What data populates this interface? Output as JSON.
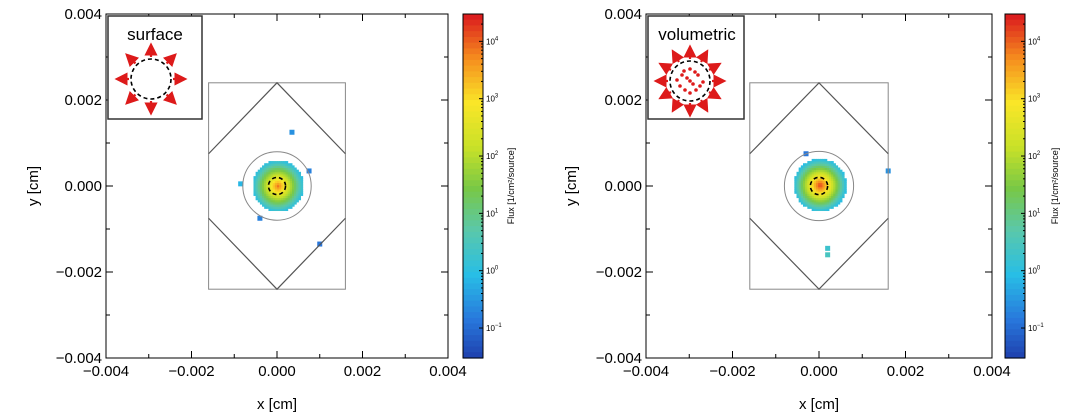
{
  "chart_data": [
    {
      "type": "heatmap",
      "panel": "surface",
      "inset_label": "surface",
      "xlabel": "x [cm]",
      "ylabel": "y [cm]",
      "xlim": [
        -0.004,
        0.004
      ],
      "ylim": [
        -0.004,
        0.004
      ],
      "x_ticks": [
        "−0.004",
        "−0.002",
        "0.000",
        "0.002",
        "0.004"
      ],
      "y_ticks": [
        "−0.004",
        "−0.002",
        "0.000",
        "0.002",
        "0.004"
      ],
      "colorbar": {
        "label": "Flux [1/cm²/source]",
        "scale": "log",
        "range": [
          0.03,
          30000
        ],
        "ticks": [
          {
            "base": "10",
            "exp": "4"
          },
          {
            "base": "10",
            "exp": "3"
          },
          {
            "base": "10",
            "exp": "2"
          },
          {
            "base": "10",
            "exp": "1"
          },
          {
            "base": "10",
            "exp": "0"
          },
          {
            "base": "10",
            "exp": "−1"
          }
        ]
      },
      "geometry_outline": {
        "square": {
          "x": [
            -0.0016,
            0.0016
          ],
          "y": [
            -0.0024,
            0.0024
          ]
        },
        "diamond_center": [
          0.0,
          0.0
        ],
        "circle_radius": 0.0008,
        "source_radius": 0.0002
      },
      "flux_blob": {
        "center": [
          0.0,
          -2e-05
        ],
        "radius": 0.0007,
        "peak": 8000,
        "falloff": 0.00013
      },
      "stray_points": [
        {
          "x": 0.00035,
          "y": 0.00125,
          "flux": 0.3
        },
        {
          "x": -0.00085,
          "y": 5e-05,
          "flux": 0.8
        },
        {
          "x": 0.00075,
          "y": 0.00035,
          "flux": 0.2
        },
        {
          "x": -0.0004,
          "y": -0.00075,
          "flux": 0.2
        },
        {
          "x": 0.001,
          "y": -0.00135,
          "flux": 0.15
        }
      ]
    },
    {
      "type": "heatmap",
      "panel": "volumetric",
      "inset_label": "volumetric",
      "xlabel": "x [cm]",
      "ylabel": "y [cm]",
      "xlim": [
        -0.004,
        0.004
      ],
      "ylim": [
        -0.004,
        0.004
      ],
      "x_ticks": [
        "−0.004",
        "−0.002",
        "0.000",
        "0.002",
        "0.004"
      ],
      "y_ticks": [
        "−0.004",
        "−0.002",
        "0.000",
        "0.002",
        "0.004"
      ],
      "colorbar": {
        "label": "Flux [1/cm²/source]",
        "scale": "log",
        "range": [
          0.03,
          30000
        ],
        "ticks": [
          {
            "base": "10",
            "exp": "4"
          },
          {
            "base": "10",
            "exp": "3"
          },
          {
            "base": "10",
            "exp": "2"
          },
          {
            "base": "10",
            "exp": "1"
          },
          {
            "base": "10",
            "exp": "0"
          },
          {
            "base": "10",
            "exp": "−1"
          }
        ]
      },
      "geometry_outline": {
        "square": {
          "x": [
            -0.0016,
            0.0016
          ],
          "y": [
            -0.0024,
            0.0024
          ]
        },
        "diamond_center": [
          0.0,
          0.0
        ],
        "circle_radius": 0.0008,
        "source_radius": 0.0002
      },
      "flux_blob": {
        "center": [
          0.0,
          0.0
        ],
        "radius": 0.00062,
        "peak": 20000,
        "falloff": 0.00012
      },
      "stray_points": [
        {
          "x": -0.0003,
          "y": 0.00075,
          "flux": 0.15
        },
        {
          "x": 0.0016,
          "y": 0.00035,
          "flux": 0.3
        },
        {
          "x": 0.0002,
          "y": -0.00145,
          "flux": 2.0
        },
        {
          "x": 0.0002,
          "y": -0.0016,
          "flux": 3.0
        }
      ]
    }
  ]
}
